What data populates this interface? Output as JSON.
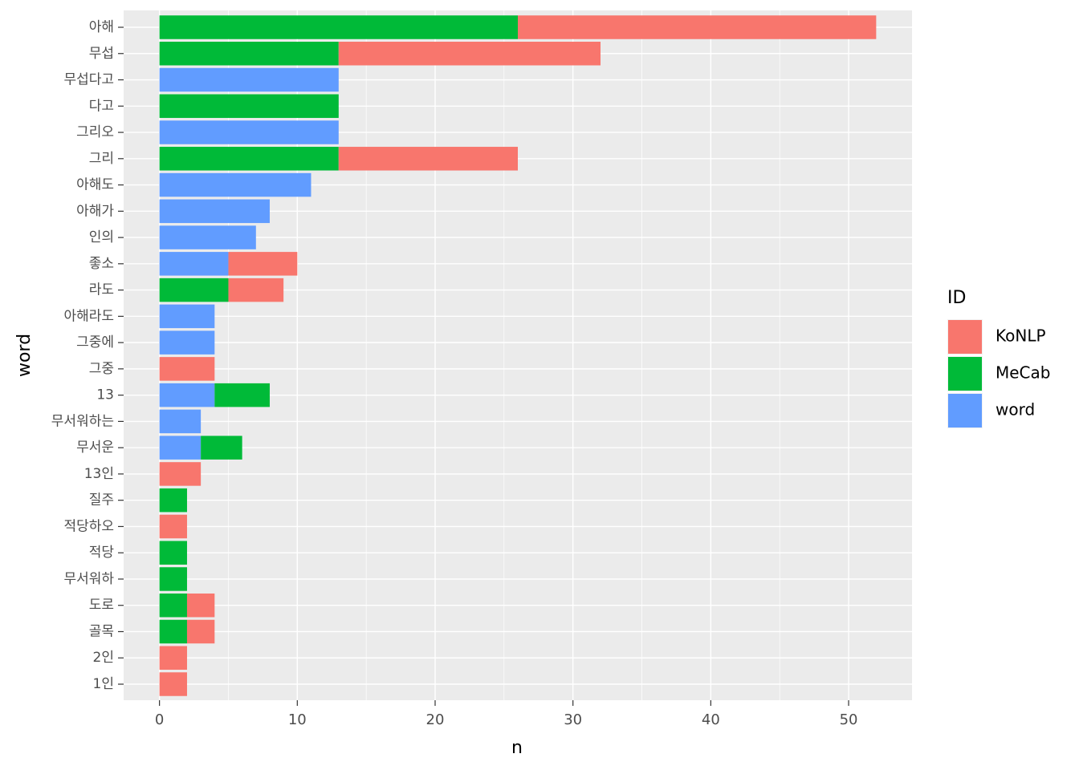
{
  "chart_data": {
    "type": "bar",
    "orientation": "horizontal",
    "stacked": true,
    "xlabel": "n",
    "ylabel": "word",
    "xlim": [
      -2.6,
      54.6
    ],
    "xticks": [
      0,
      10,
      20,
      30,
      40,
      50
    ],
    "grid": true,
    "legend_position": "right",
    "legend_title": "ID",
    "categories": [
      "아해",
      "무섭",
      "무섭다고",
      "다고",
      "그리오",
      "그리",
      "아해도",
      "아해가",
      "인의",
      "좋소",
      "라도",
      "아해라도",
      "그중에",
      "그중",
      "13",
      "무서워하는",
      "무서운",
      "13인",
      "질주",
      "적당하오",
      "적당",
      "무서워하",
      "도로",
      "골목",
      "2인",
      "1인"
    ],
    "series": [
      {
        "name": "MeCab",
        "color": "#00BA38",
        "values": [
          26,
          13,
          0,
          13,
          0,
          13,
          0,
          0,
          0,
          0,
          5,
          0,
          0,
          0,
          4,
          0,
          3,
          0,
          2,
          0,
          2,
          2,
          2,
          2,
          0,
          0
        ]
      },
      {
        "name": "KoNLP",
        "color": "#F8766D",
        "values": [
          26,
          19,
          0,
          0,
          0,
          13,
          0,
          0,
          0,
          5,
          4,
          0,
          0,
          4,
          0,
          0,
          0,
          3,
          0,
          2,
          0,
          0,
          2,
          2,
          2,
          2
        ]
      },
      {
        "name": "word",
        "color": "#619CFF",
        "values": [
          0,
          0,
          13,
          0,
          13,
          0,
          11,
          8,
          7,
          5,
          0,
          4,
          4,
          0,
          4,
          3,
          3,
          0,
          0,
          0,
          0,
          0,
          0,
          0,
          0,
          0
        ]
      }
    ],
    "stack_order": {
      "아해": [
        "MeCab",
        "KoNLP"
      ],
      "무섭": [
        "MeCab",
        "KoNLP"
      ],
      "무섭다고": [
        "word"
      ],
      "다고": [
        "MeCab"
      ],
      "그리오": [
        "word"
      ],
      "그리": [
        "MeCab",
        "KoNLP"
      ],
      "아해도": [
        "word"
      ],
      "아해가": [
        "word"
      ],
      "인의": [
        "word"
      ],
      "좋소": [
        "word",
        "KoNLP"
      ],
      "라도": [
        "MeCab",
        "KoNLP"
      ],
      "아해라도": [
        "word"
      ],
      "그중에": [
        "word"
      ],
      "그중": [
        "KoNLP"
      ],
      "13": [
        "word",
        "MeCab"
      ],
      "무서워하는": [
        "word"
      ],
      "무서운": [
        "word",
        "MeCab"
      ],
      "13인": [
        "KoNLP"
      ],
      "질주": [
        "MeCab"
      ],
      "적당하오": [
        "KoNLP"
      ],
      "적당": [
        "MeCab"
      ],
      "무서워하": [
        "MeCab"
      ],
      "도로": [
        "MeCab",
        "KoNLP"
      ],
      "골목": [
        "MeCab",
        "KoNLP"
      ],
      "2인": [
        "KoNLP"
      ],
      "1인": [
        "KoNLP"
      ]
    },
    "legend": [
      {
        "label": "KoNLP",
        "color": "#F8766D"
      },
      {
        "label": "MeCab",
        "color": "#00BA38"
      },
      {
        "label": "word",
        "color": "#619CFF"
      }
    ],
    "panel_background": "#EBEBEB",
    "grid_color": "#FFFFFF"
  }
}
